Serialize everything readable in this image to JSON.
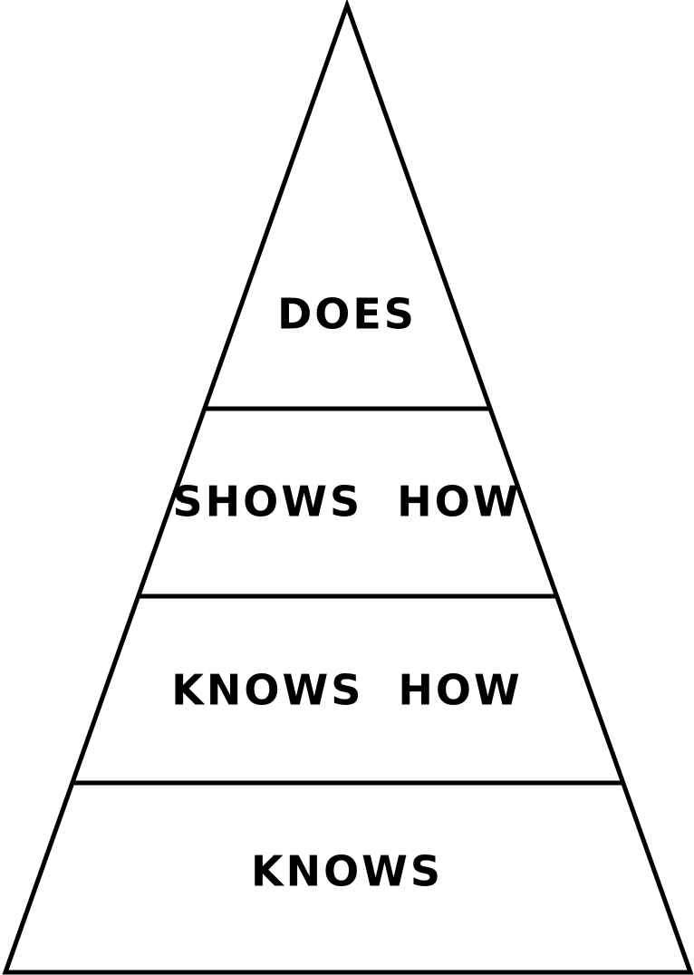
{
  "diagram": {
    "tiers": [
      {
        "label": "DOES"
      },
      {
        "label": "SHOWS  HOW"
      },
      {
        "label": "KNOWS  HOW"
      },
      {
        "label": "KNOWS"
      }
    ]
  },
  "colors": {
    "background": "#ffffff",
    "stroke": "#000000",
    "text": "#000000"
  }
}
